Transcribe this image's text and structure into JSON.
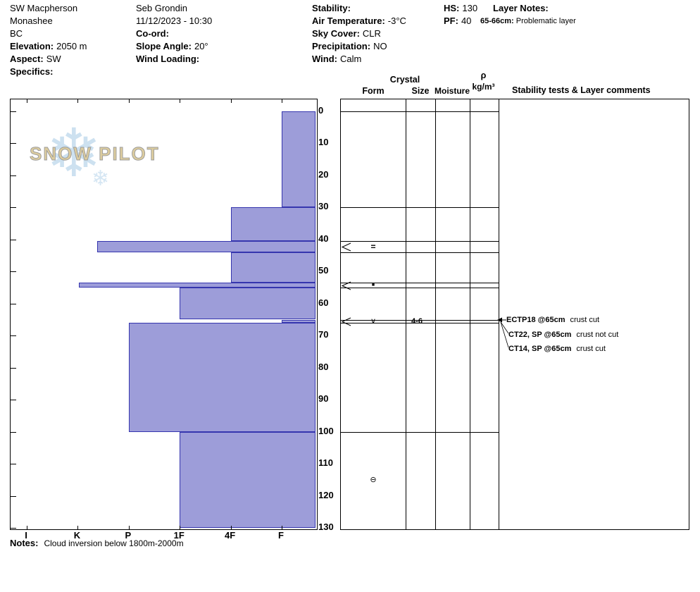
{
  "header": {
    "location": {
      "name": "SW Macpherson",
      "range": "Monashee",
      "region": "BC",
      "elevation_label": "Elevation:",
      "elevation_value": "2050 m",
      "aspect_label": "Aspect:",
      "aspect_value": "SW",
      "specifics_label": "Specifics:",
      "specifics_value": ""
    },
    "observer": {
      "name": "Seb Grondin",
      "datetime": "11/12/2023 - 10:30",
      "coord_label": "Co-ord:",
      "coord_value": "",
      "slope_angle_label": "Slope Angle:",
      "slope_angle_value": "20°",
      "wind_loading_label": "Wind Loading:",
      "wind_loading_value": ""
    },
    "conditions": {
      "stability_label": "Stability:",
      "stability_value": "",
      "air_temp_label": "Air Temperature:",
      "air_temp_value": "-3°C",
      "sky_cover_label": "Sky Cover:",
      "sky_cover_value": "CLR",
      "precip_label": "Precipitation:",
      "precip_value": "NO",
      "wind_label": "Wind:",
      "wind_value": "Calm"
    },
    "snowpack": {
      "hs_label": "HS:",
      "hs_value": "130",
      "pf_label": "PF:",
      "pf_value": "40"
    },
    "layer_notes": {
      "title": "Layer Notes:",
      "entries": [
        {
          "depth": "65-66cm:",
          "text": "Problematic layer"
        }
      ]
    }
  },
  "watermark": {
    "text": "SNOW PILOT",
    "snowflake": "❄"
  },
  "chart_data": {
    "type": "bar",
    "subtype": "snow-hardness-profile",
    "hardness_categories": [
      "I",
      "K",
      "P",
      "1F",
      "4F",
      "F"
    ],
    "depth_ticks": [
      0,
      10,
      20,
      30,
      40,
      50,
      60,
      70,
      80,
      90,
      100,
      110,
      120,
      130
    ],
    "depth_max": 130,
    "depth_unit": "cm",
    "layers": [
      {
        "top_cm": 0,
        "bottom_cm": 30,
        "hardness": "F",
        "hardness_index": 5
      },
      {
        "top_cm": 30,
        "bottom_cm": 40.5,
        "hardness": "4F",
        "hardness_index": 4
      },
      {
        "top_cm": 40.5,
        "bottom_cm": 44,
        "hardness": "K+",
        "hardness_index": 1.38,
        "form": "=",
        "thin_layer_marker": true
      },
      {
        "top_cm": 44,
        "bottom_cm": 53.5,
        "hardness": "4F",
        "hardness_index": 4
      },
      {
        "top_cm": 53.5,
        "bottom_cm": 55,
        "hardness": "K",
        "hardness_index": 1.02,
        "form": "■",
        "thin_layer_marker": true
      },
      {
        "top_cm": 55,
        "bottom_cm": 65,
        "hardness": "1F",
        "hardness_index": 3
      },
      {
        "top_cm": 65,
        "bottom_cm": 66,
        "hardness": "F",
        "hardness_index": 5,
        "form": "∨",
        "grain_size_mm": "4-6",
        "thin_layer_marker": true
      },
      {
        "top_cm": 66,
        "bottom_cm": 100,
        "hardness": "P",
        "hardness_index": 2
      },
      {
        "top_cm": 100,
        "bottom_cm": 130,
        "hardness": "1F",
        "hardness_index": 3,
        "form": "⊖"
      }
    ],
    "colors": {
      "bar_fill": "#9d9dd9",
      "bar_border": "#3535ae"
    }
  },
  "panel": {
    "headers": {
      "crystal": "Crystal",
      "form": "Form",
      "size": "Size",
      "moisture": "Moisture",
      "rho": "ρ",
      "rho_unit": "kg/m³",
      "comments": "Stability tests & Layer comments"
    },
    "tests": [
      {
        "name": "ECTP18",
        "at": "@65cm",
        "comment": "crust cut"
      },
      {
        "name": "CT22, SP",
        "at": "@65cm",
        "comment": "crust not cut"
      },
      {
        "name": "CT14, SP",
        "at": "@65cm",
        "comment": "crust cut"
      }
    ]
  },
  "footer": {
    "notes_label": "Notes:",
    "notes_text": "Cloud inversion below 1800m-2000m"
  }
}
